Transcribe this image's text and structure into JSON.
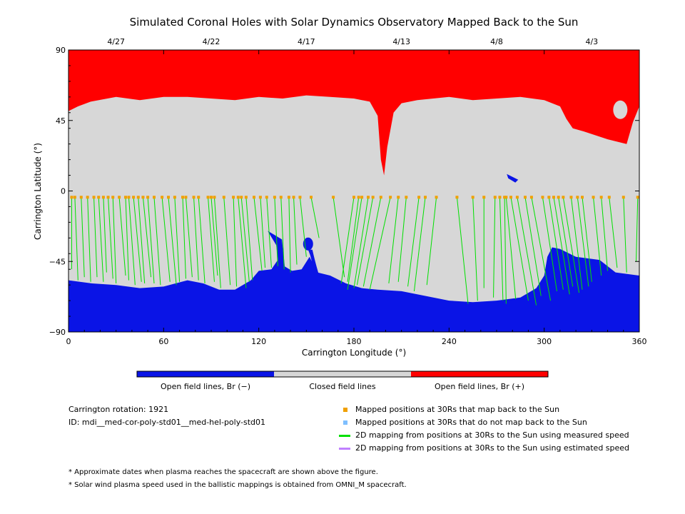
{
  "colors": {
    "open_negative": "#0a14e6",
    "closed": "#d7d7d7",
    "open_positive": "#ff0000",
    "mapped_point": "#f0a000",
    "not_mapped_point": "#7fbfff",
    "measured_line": "#00e000",
    "estimated_line": "#c080ff"
  },
  "chart_data": {
    "type": "map",
    "title": "Simulated Coronal Holes with Solar Dynamics Observatory Mapped Back to the Sun",
    "xlabel": "Carrington Longitude (°)",
    "ylabel": "Carrington Latitude (°)",
    "xlim": [
      0,
      360
    ],
    "ylim": [
      -90,
      90
    ],
    "x_ticks": [
      "0",
      "60",
      "120",
      "180",
      "240",
      "300",
      "360"
    ],
    "y_ticks": [
      "90",
      "45",
      "0",
      "−45",
      "−90"
    ],
    "top_axis_dates": [
      {
        "label": "4/27",
        "lon": 30
      },
      {
        "label": "4/22",
        "lon": 90
      },
      {
        "label": "4/17",
        "lon": 150
      },
      {
        "label": "4/13",
        "lon": 210
      },
      {
        "label": "4/8",
        "lon": 270
      },
      {
        "label": "4/3",
        "lon": 330
      }
    ],
    "colorbar": {
      "labels": [
        "Open field lines, Br (−)",
        "Closed field lines",
        "Open field lines, Br (+)"
      ]
    },
    "north_boundary_lat": [
      [
        0,
        51
      ],
      [
        6,
        54
      ],
      [
        14,
        57
      ],
      [
        30,
        60
      ],
      [
        45,
        58
      ],
      [
        60,
        60
      ],
      [
        75,
        60
      ],
      [
        90,
        59
      ],
      [
        105,
        58
      ],
      [
        120,
        60
      ],
      [
        135,
        59
      ],
      [
        150,
        61
      ],
      [
        165,
        60
      ],
      [
        180,
        59
      ],
      [
        190,
        57
      ],
      [
        195,
        48
      ],
      [
        197,
        20
      ],
      [
        199,
        10
      ],
      [
        201,
        28
      ],
      [
        205,
        50
      ],
      [
        210,
        56
      ],
      [
        220,
        58
      ],
      [
        240,
        60
      ],
      [
        255,
        58
      ],
      [
        270,
        59
      ],
      [
        285,
        60
      ],
      [
        300,
        58
      ],
      [
        310,
        54
      ],
      [
        314,
        46
      ],
      [
        318,
        40
      ],
      [
        325,
        38
      ],
      [
        340,
        33
      ],
      [
        352,
        30
      ],
      [
        356,
        44
      ],
      [
        360,
        54
      ]
    ],
    "south_boundary_lat": [
      [
        0,
        -57
      ],
      [
        15,
        -59
      ],
      [
        30,
        -60
      ],
      [
        45,
        -62
      ],
      [
        60,
        -61
      ],
      [
        75,
        -57
      ],
      [
        85,
        -59
      ],
      [
        95,
        -63
      ],
      [
        105,
        -63
      ],
      [
        115,
        -57
      ],
      [
        120,
        -51
      ],
      [
        128,
        -50
      ],
      [
        132,
        -44
      ],
      [
        136,
        -48
      ],
      [
        141,
        -51
      ],
      [
        147,
        -50
      ],
      [
        152,
        -42
      ],
      [
        157,
        -52
      ],
      [
        165,
        -54
      ],
      [
        175,
        -59
      ],
      [
        185,
        -62
      ],
      [
        195,
        -63
      ],
      [
        210,
        -64
      ],
      [
        225,
        -67
      ],
      [
        240,
        -70
      ],
      [
        255,
        -71
      ],
      [
        270,
        -70
      ],
      [
        285,
        -68
      ],
      [
        295,
        -62
      ],
      [
        300,
        -54
      ],
      [
        302,
        -42
      ],
      [
        305,
        -36
      ],
      [
        310,
        -37
      ],
      [
        320,
        -42
      ],
      [
        335,
        -44
      ],
      [
        345,
        -52
      ],
      [
        360,
        -54
      ]
    ],
    "mapped_points": {
      "source_lat": -4,
      "longitudes": [
        2,
        4,
        8,
        12,
        16,
        19,
        22,
        25,
        28,
        32,
        36,
        38,
        41,
        44,
        47,
        50,
        54,
        59,
        63,
        67,
        72,
        74,
        79,
        82,
        88,
        90,
        92,
        98,
        104,
        107,
        109,
        112,
        117,
        121,
        125,
        130,
        134,
        139,
        142,
        146,
        153,
        167,
        180,
        183,
        185,
        189,
        192,
        197,
        203,
        208,
        213,
        221,
        225,
        232,
        245,
        255,
        262,
        269,
        272,
        275,
        276,
        279,
        283,
        288,
        292,
        299,
        303,
        306,
        309,
        312,
        317,
        321,
        324,
        331,
        336,
        341,
        350,
        359
      ],
      "sun_lat": [
        -50,
        -57,
        -55,
        -58,
        -55,
        -58,
        -52,
        -56,
        -59,
        -54,
        -57,
        -60,
        -58,
        -59,
        -55,
        -59,
        -60,
        -58,
        -60,
        -58,
        -56,
        -55,
        -57,
        -59,
        -58,
        -54,
        -62,
        -60,
        -61,
        -62,
        -58,
        -57,
        -51,
        -49,
        -49,
        -48,
        -50,
        -52,
        -47,
        -42,
        -30,
        -55,
        -59,
        -58,
        -63,
        -62,
        -60,
        -61,
        -63,
        -59,
        -58,
        -61,
        -64,
        -60,
        -72,
        -70,
        -62,
        -68,
        -70,
        -72,
        -69,
        -70,
        -73,
        -67,
        -70,
        -64,
        -63,
        -66,
        -61,
        -65,
        -63,
        -61,
        -58,
        -54,
        -51,
        -49,
        -52,
        -45
      ],
      "sun_lon": [
        2,
        6,
        10,
        14,
        18,
        22,
        24,
        28,
        30,
        36,
        38,
        42,
        46,
        48,
        52,
        54,
        58,
        64,
        68,
        70,
        74,
        78,
        82,
        86,
        92,
        94,
        96,
        102,
        106,
        112,
        114,
        116,
        122,
        124,
        128,
        132,
        136,
        140,
        144,
        150,
        158,
        174,
        172,
        176,
        176,
        180,
        182,
        186,
        190,
        202,
        208,
        214,
        218,
        226,
        252,
        258,
        262,
        268,
        274,
        276,
        282,
        290,
        295,
        298,
        304,
        308,
        312,
        316,
        318,
        322,
        324,
        328,
        330,
        336,
        340,
        346,
        352,
        358
      ]
    },
    "small_features": [
      {
        "kind": "negative_patch",
        "lon": 131,
        "lat": -30
      },
      {
        "kind": "negative_blob",
        "lon": 152,
        "lat": -32
      },
      {
        "kind": "positive_patch",
        "lon": 348,
        "lat": 50
      },
      {
        "kind": "negative_islet",
        "lon": 280,
        "lat": 9
      }
    ]
  },
  "legend": {
    "info_rotation": "Carrington rotation: 1921",
    "info_id": "ID: mdi__med-cor-poly-std01__med-hel-poly-std01",
    "items": [
      {
        "label": "Mapped positions at 30Rs that map back to the Sun",
        "kind": "square",
        "color": "#f0a000"
      },
      {
        "label": "Mapped positions at 30Rs that do not map back to the Sun",
        "kind": "square",
        "color": "#7fbfff"
      },
      {
        "label": "2D mapping from positions at 30Rs to the Sun using measured speed",
        "kind": "line",
        "color": "#00e000"
      },
      {
        "label": "2D mapping from positions at 30Rs to the Sun using estimated speed",
        "kind": "line",
        "color": "#c080ff"
      }
    ]
  },
  "footnotes": [
    "* Approximate dates when plasma reaches the spacecraft are shown above the figure.",
    "* Solar wind plasma speed used in the ballistic mappings is obtained from OMNI_M spacecraft."
  ]
}
